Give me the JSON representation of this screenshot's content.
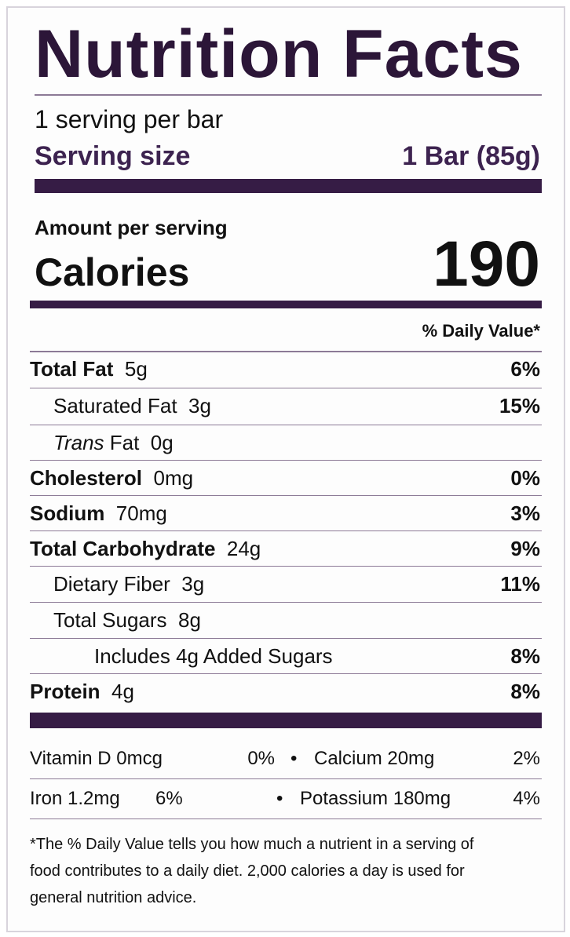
{
  "title": "Nutrition Facts",
  "servings": "1 serving per bar",
  "serving_size": {
    "label": "Serving size",
    "value": "1 Bar (85g)"
  },
  "amount_per_serving": "Amount per serving",
  "calories": {
    "label": "Calories",
    "value": 190
  },
  "daily_value_header": "% Daily Value*",
  "nutrients": [
    {
      "name": "Total Fat",
      "amount": "5g",
      "dv": "6%",
      "level": 0,
      "bold": true
    },
    {
      "name": "Saturated Fat",
      "amount": "3g",
      "dv": "15%",
      "level": 1,
      "bold": false
    },
    {
      "name_italic": "Trans",
      "name": "Fat",
      "amount": "0g",
      "level": 1,
      "bold": false
    },
    {
      "name": "Cholesterol",
      "amount": "0mg",
      "dv": "0%",
      "level": 0,
      "bold": true
    },
    {
      "name": "Sodium",
      "amount": "70mg",
      "dv": "3%",
      "level": 0,
      "bold": true
    },
    {
      "name": "Total Carbohydrate",
      "amount": "24g",
      "dv": "9%",
      "level": 0,
      "bold": true
    },
    {
      "name": "Dietary Fiber",
      "amount": "3g",
      "dv": "11%",
      "level": 1,
      "bold": false
    },
    {
      "name": "Total Sugars",
      "amount": "8g",
      "level": 1,
      "bold": false
    },
    {
      "name": "Includes 4g Added Sugars",
      "dv": "8%",
      "level": 2,
      "bold": false
    },
    {
      "name": "Protein",
      "amount": "4g",
      "dv": "8%",
      "level": 0,
      "bold": true
    }
  ],
  "vitamins": [
    {
      "name": "Vitamin D",
      "amount": "0mcg",
      "dv": "0%"
    },
    {
      "name": "Calcium",
      "amount": "20mg",
      "dv": "2%"
    },
    {
      "name": "Iron",
      "amount": "1.2mg",
      "dv": "6%"
    },
    {
      "name": "Potassium",
      "amount": "180mg",
      "dv": "4%"
    }
  ],
  "footnote": [
    "*The % Daily Value tells you how much a nutrient in a serving of",
    "food contributes to a daily diet. 2,000 calories a day is used for",
    "general nutrition advice."
  ]
}
